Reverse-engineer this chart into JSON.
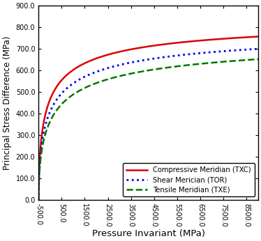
{
  "xlabel": "Pressure Invariant (MPa)",
  "ylabel": "Principal Stress Difference (MPa)",
  "xlim": [
    -500,
    9000
  ],
  "ylim": [
    0.0,
    900.0
  ],
  "xticks": [
    -500.0,
    500.0,
    1500.0,
    2500.0,
    3500.0,
    4500.0,
    5500.0,
    6500.0,
    7500.0,
    8500.0
  ],
  "yticks": [
    0.0,
    100.0,
    200.0,
    300.0,
    400.0,
    500.0,
    600.0,
    700.0,
    800.0,
    900.0
  ],
  "x_start": -500.0,
  "x_end": 9000.0,
  "curves": [
    {
      "name": "TXC",
      "label": "Compressive Meridian (TXC)",
      "color": "#dd0000",
      "linestyle": "solid",
      "linewidth": 1.8,
      "Vmax": 860.0,
      "K": 380.0,
      "n": 0.62
    },
    {
      "name": "TOR",
      "label": "Shear Merician (TOR)",
      "color": "#0000ee",
      "linestyle": "dotted",
      "linewidth": 2.0,
      "Vmax": 820.0,
      "K": 500.0,
      "n": 0.6
    },
    {
      "name": "TXE",
      "label": "Tensile Meridian (TXE)",
      "color": "#007700",
      "linestyle": "dashed",
      "linewidth": 1.8,
      "Vmax": 790.0,
      "K": 650.0,
      "n": 0.58
    }
  ],
  "legend_loc": "lower right",
  "bg_color": "#ffffff",
  "tick_fontsize": 7.0,
  "label_fontsize": 9.0,
  "xlabel_fontsize": 9.5,
  "ylabel_fontsize": 8.5,
  "xtick_rotation": 270
}
